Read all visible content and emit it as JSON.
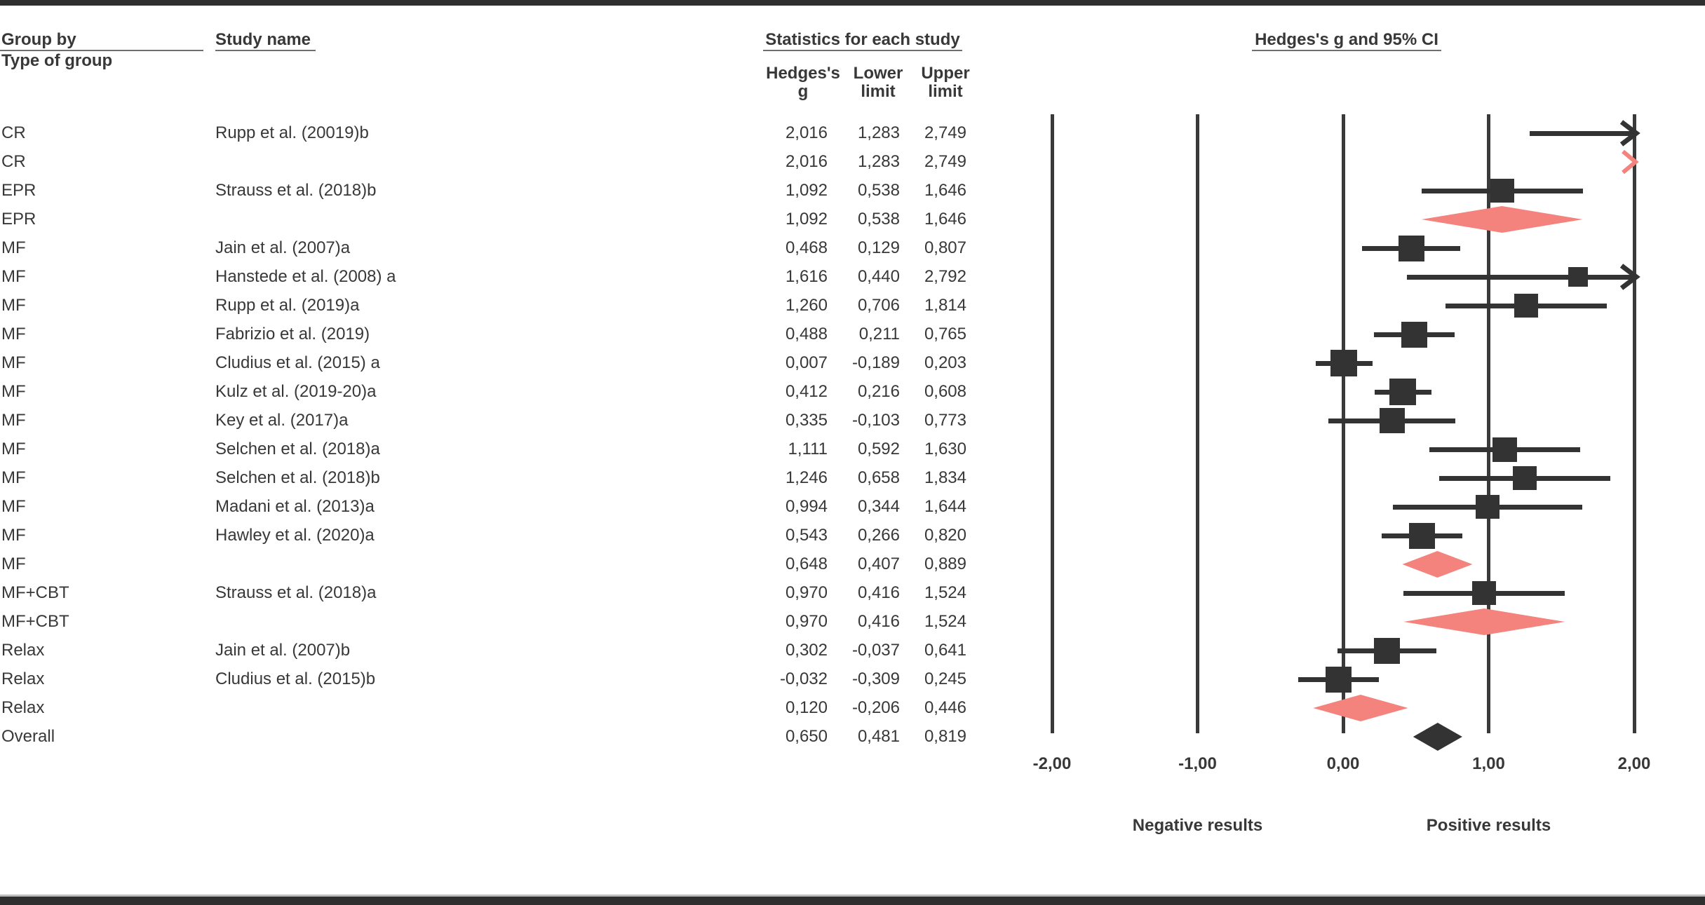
{
  "header": {
    "group_by_line1": "Group by",
    "group_by_line2": "Type of group",
    "study_name": "Study name",
    "stats_title": "Statistics for each study",
    "plot_title": "Hedges's g and 95% CI",
    "col_effect_line1": "Hedges's",
    "col_effect_line2": "g",
    "col_lower_line1": "Lower",
    "col_lower_line2": "limit",
    "col_upper_line1": "Upper",
    "col_upper_line2": "limit"
  },
  "axis": {
    "ticks": [
      "-2,00",
      "-1,00",
      "0,00",
      "1,00",
      "2,00"
    ],
    "tick_values": [
      -2,
      -1,
      0,
      1,
      2
    ],
    "negative_label": "Negative results",
    "positive_label": "Positive results"
  },
  "colors": {
    "ink": "#333333",
    "grid": "#3a3a3a",
    "summary_diamond": "#f4837d",
    "overall_diamond": "#333333",
    "frame_bar": "#2f2f2f"
  },
  "chart_data": {
    "type": "scatter",
    "subtype": "forest-plot-meta-analysis",
    "title": "Hedges's g and 95% CI",
    "stats_header": "Statistics for each study",
    "columns": [
      "Hedges's g",
      "Lower limit",
      "Upper limit"
    ],
    "xlim": [
      -2,
      2
    ],
    "x_ticks": [
      -2,
      -1,
      0,
      1,
      2
    ],
    "decimal_separator": ",",
    "xlabel_negative": "Negative results",
    "xlabel_positive": "Positive results",
    "rows": [
      {
        "group": "CR",
        "study": "Rupp et al. (20019)b",
        "g_txt": "2,016",
        "lower_txt": "1,283",
        "upper_txt": "2,749",
        "g": 2.016,
        "lower": 1.283,
        "upper": 2.749,
        "kind": "study"
      },
      {
        "group": "CR",
        "study": "",
        "g_txt": "2,016",
        "lower_txt": "1,283",
        "upper_txt": "2,749",
        "g": 2.016,
        "lower": 1.283,
        "upper": 2.749,
        "kind": "summary"
      },
      {
        "group": "EPR",
        "study": "Strauss et al. (2018)b",
        "g_txt": "1,092",
        "lower_txt": "0,538",
        "upper_txt": "1,646",
        "g": 1.092,
        "lower": 0.538,
        "upper": 1.646,
        "kind": "study"
      },
      {
        "group": "EPR",
        "study": "",
        "g_txt": "1,092",
        "lower_txt": "0,538",
        "upper_txt": "1,646",
        "g": 1.092,
        "lower": 0.538,
        "upper": 1.646,
        "kind": "summary"
      },
      {
        "group": "MF",
        "study": "Jain et al. (2007)a",
        "g_txt": "0,468",
        "lower_txt": "0,129",
        "upper_txt": "0,807",
        "g": 0.468,
        "lower": 0.129,
        "upper": 0.807,
        "kind": "study"
      },
      {
        "group": "MF",
        "study": "Hanstede et al. (2008) a",
        "g_txt": "1,616",
        "lower_txt": "0,440",
        "upper_txt": "2,792",
        "g": 1.616,
        "lower": 0.44,
        "upper": 2.792,
        "kind": "study"
      },
      {
        "group": "MF",
        "study": "Rupp et al. (2019)a",
        "g_txt": "1,260",
        "lower_txt": "0,706",
        "upper_txt": "1,814",
        "g": 1.26,
        "lower": 0.706,
        "upper": 1.814,
        "kind": "study"
      },
      {
        "group": "MF",
        "study": "Fabrizio et al. (2019)",
        "g_txt": "0,488",
        "lower_txt": "0,211",
        "upper_txt": "0,765",
        "g": 0.488,
        "lower": 0.211,
        "upper": 0.765,
        "kind": "study"
      },
      {
        "group": "MF",
        "study": "Cludius et al. (2015) a",
        "g_txt": "0,007",
        "lower_txt": "-0,189",
        "upper_txt": "0,203",
        "g": 0.007,
        "lower": -0.189,
        "upper": 0.203,
        "kind": "study"
      },
      {
        "group": "MF",
        "study": "Kulz et al. (2019-20)a",
        "g_txt": "0,412",
        "lower_txt": "0,216",
        "upper_txt": "0,608",
        "g": 0.412,
        "lower": 0.216,
        "upper": 0.608,
        "kind": "study"
      },
      {
        "group": "MF",
        "study": "Key et al. (2017)a",
        "g_txt": "0,335",
        "lower_txt": "-0,103",
        "upper_txt": "0,773",
        "g": 0.335,
        "lower": -0.103,
        "upper": 0.773,
        "kind": "study"
      },
      {
        "group": "MF",
        "study": "Selchen et al. (2018)a",
        "g_txt": "1,111",
        "lower_txt": "0,592",
        "upper_txt": "1,630",
        "g": 1.111,
        "lower": 0.592,
        "upper": 1.63,
        "kind": "study"
      },
      {
        "group": "MF",
        "study": "Selchen et al. (2018)b",
        "g_txt": "1,246",
        "lower_txt": "0,658",
        "upper_txt": "1,834",
        "g": 1.246,
        "lower": 0.658,
        "upper": 1.834,
        "kind": "study"
      },
      {
        "group": "MF",
        "study": "Madani et al. (2013)a",
        "g_txt": "0,994",
        "lower_txt": "0,344",
        "upper_txt": "1,644",
        "g": 0.994,
        "lower": 0.344,
        "upper": 1.644,
        "kind": "study"
      },
      {
        "group": "MF",
        "study": "Hawley et al. (2020)a",
        "g_txt": "0,543",
        "lower_txt": "0,266",
        "upper_txt": "0,820",
        "g": 0.543,
        "lower": 0.266,
        "upper": 0.82,
        "kind": "study"
      },
      {
        "group": "MF",
        "study": "",
        "g_txt": "0,648",
        "lower_txt": "0,407",
        "upper_txt": "0,889",
        "g": 0.648,
        "lower": 0.407,
        "upper": 0.889,
        "kind": "summary"
      },
      {
        "group": "MF+CBT",
        "study": "Strauss et al. (2018)a",
        "g_txt": "0,970",
        "lower_txt": "0,416",
        "upper_txt": "1,524",
        "g": 0.97,
        "lower": 0.416,
        "upper": 1.524,
        "kind": "study"
      },
      {
        "group": "MF+CBT",
        "study": "",
        "g_txt": "0,970",
        "lower_txt": "0,416",
        "upper_txt": "1,524",
        "g": 0.97,
        "lower": 0.416,
        "upper": 1.524,
        "kind": "summary"
      },
      {
        "group": "Relax",
        "study": "Jain et al. (2007)b",
        "g_txt": "0,302",
        "lower_txt": "-0,037",
        "upper_txt": "0,641",
        "g": 0.302,
        "lower": -0.037,
        "upper": 0.641,
        "kind": "study"
      },
      {
        "group": "Relax",
        "study": "Cludius et al. (2015)b",
        "g_txt": "-0,032",
        "lower_txt": "-0,309",
        "upper_txt": "0,245",
        "g": -0.032,
        "lower": -0.309,
        "upper": 0.245,
        "kind": "study"
      },
      {
        "group": "Relax",
        "study": "",
        "g_txt": "0,120",
        "lower_txt": "-0,206",
        "upper_txt": "0,446",
        "g": 0.12,
        "lower": -0.206,
        "upper": 0.446,
        "kind": "summary"
      },
      {
        "group": "Overall",
        "study": "",
        "g_txt": "0,650",
        "lower_txt": "0,481",
        "upper_txt": "0,819",
        "g": 0.65,
        "lower": 0.481,
        "upper": 0.819,
        "kind": "overall"
      }
    ]
  }
}
